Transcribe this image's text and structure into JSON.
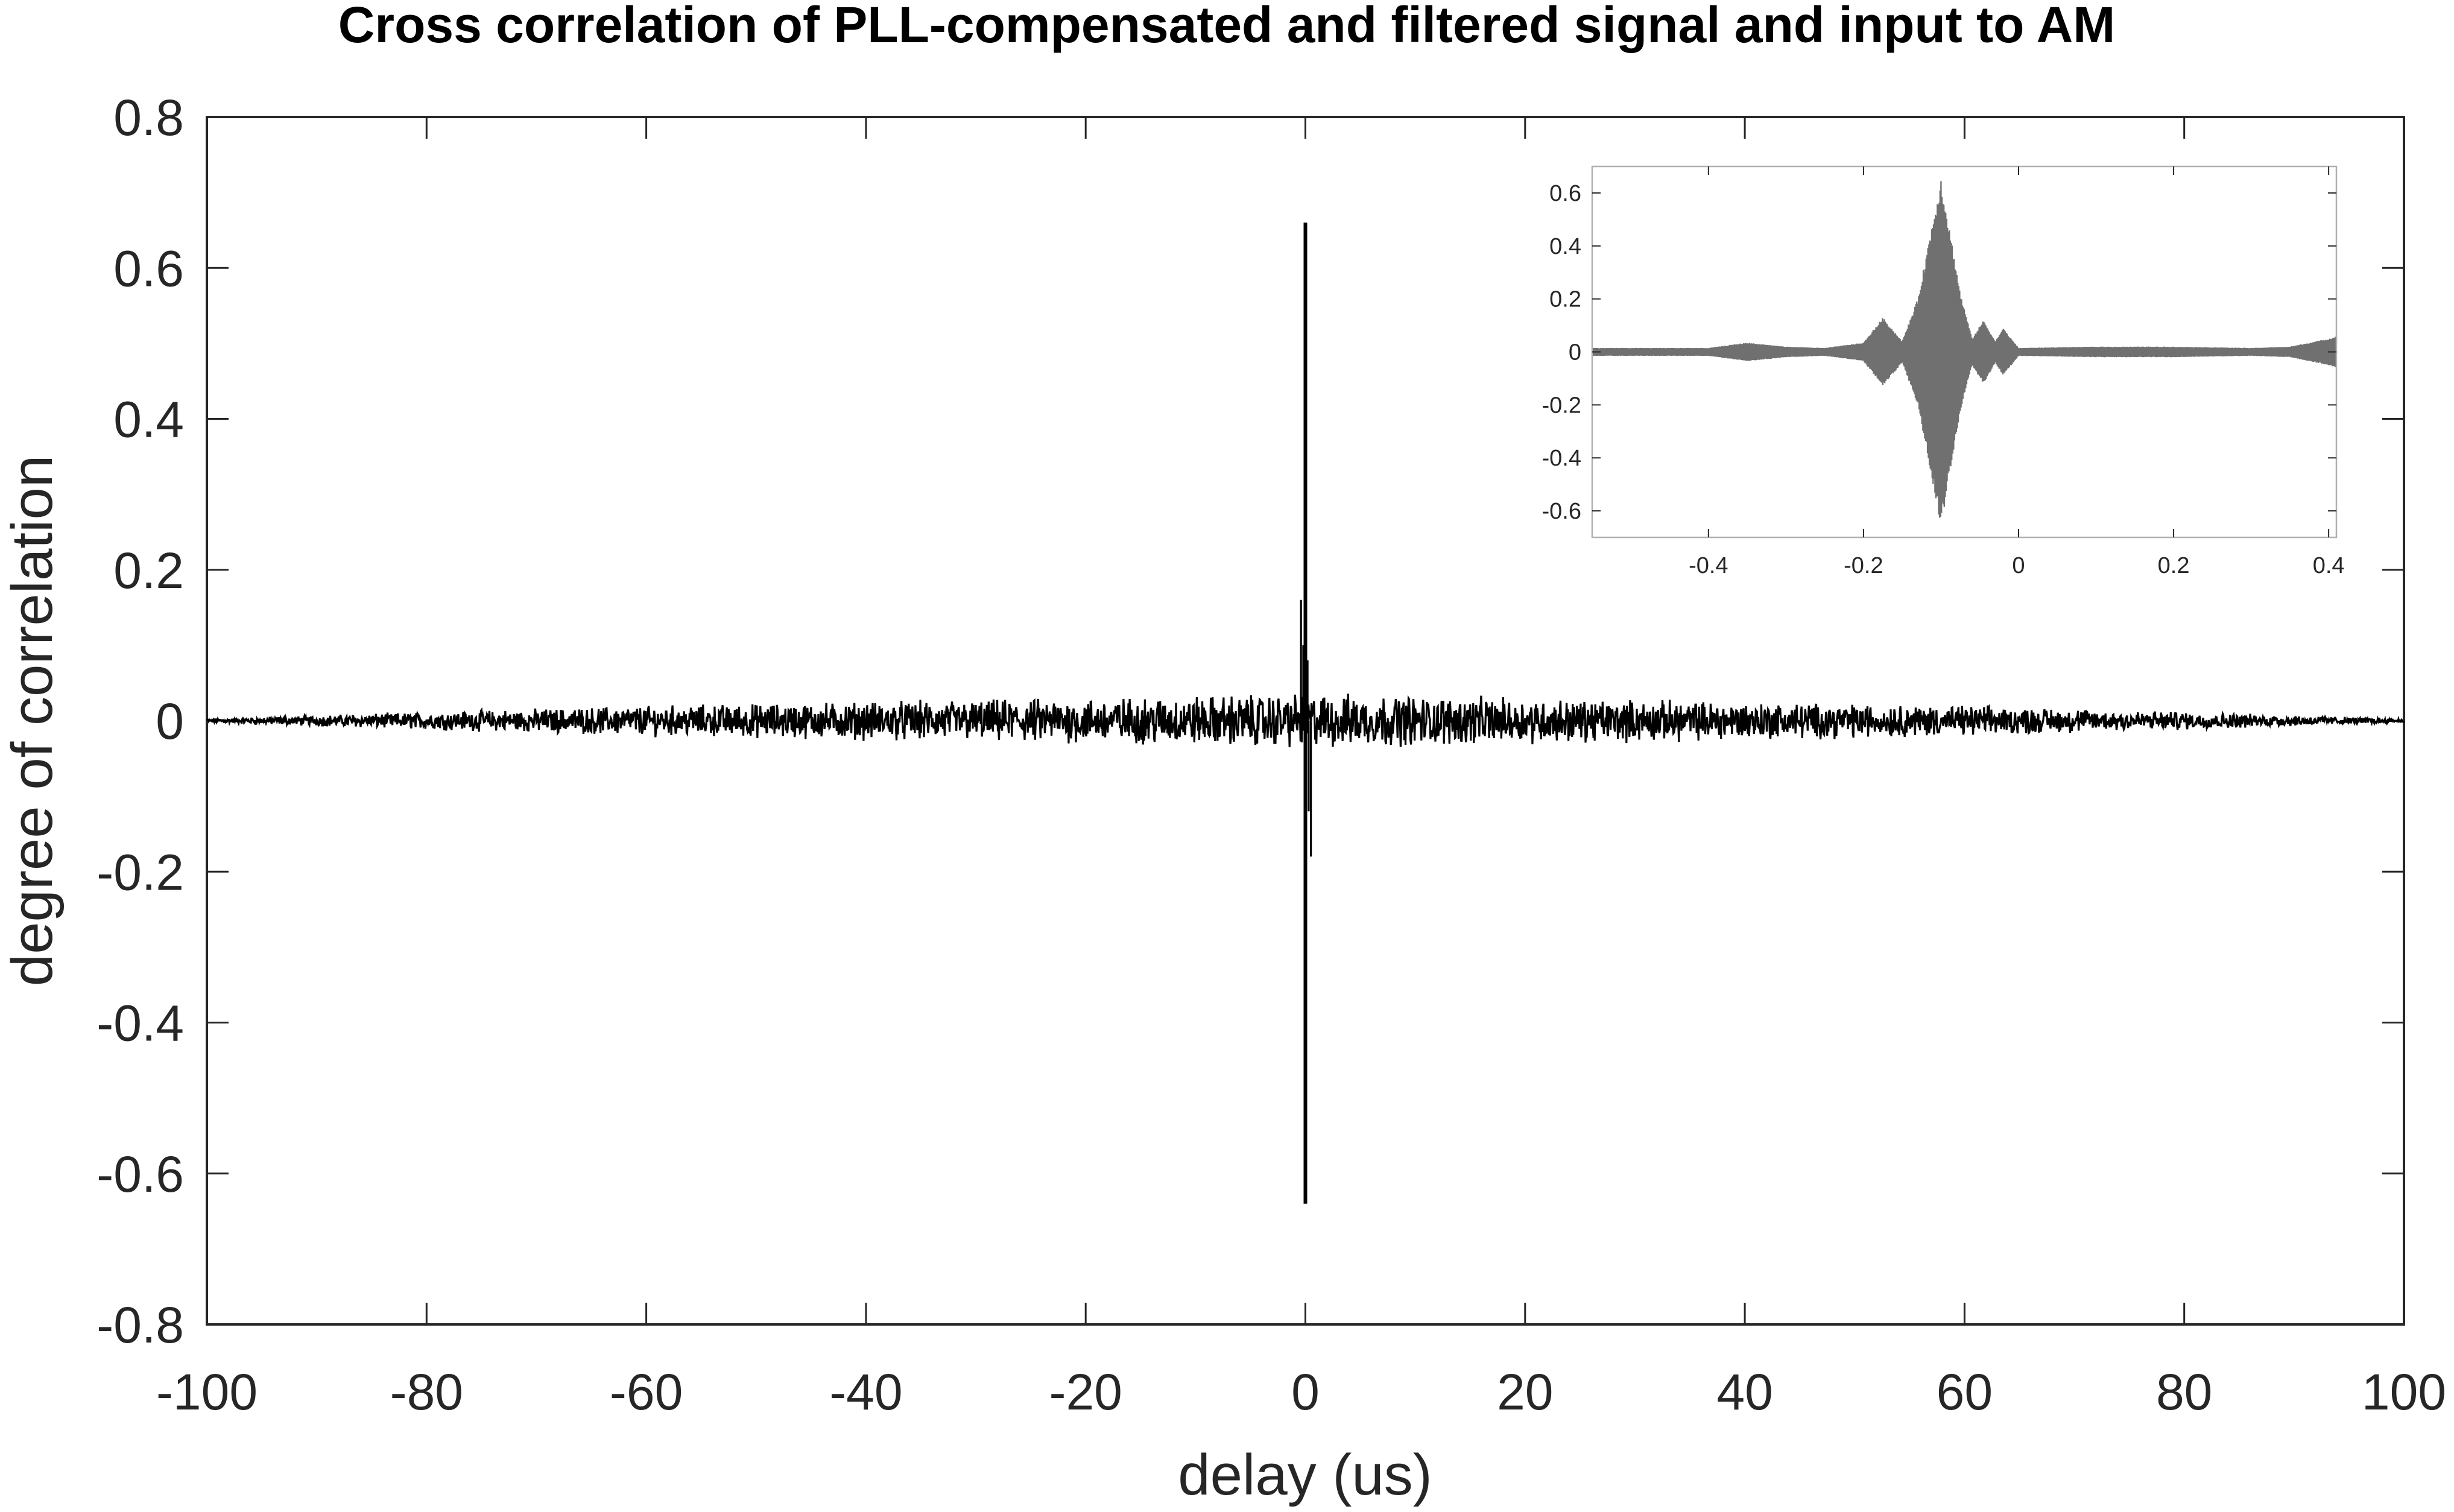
{
  "chart_data": [
    {
      "type": "line",
      "title": "Cross correlation of PLL-compensated and filtered signal and input to AM",
      "xlabel": "delay (us)",
      "ylabel": "degree of correlation",
      "xlim": [
        -100,
        100
      ],
      "ylim": [
        -0.8,
        0.8
      ],
      "xticks": [
        -100,
        -80,
        -60,
        -40,
        -20,
        0,
        20,
        40,
        60,
        80,
        100
      ],
      "yticks": [
        -0.8,
        -0.6,
        -0.4,
        -0.2,
        0,
        0.2,
        0.4,
        0.6,
        0.8
      ],
      "xtick_labels": [
        "-100",
        "-80",
        "-60",
        "-40",
        "-20",
        "0",
        "20",
        "40",
        "60",
        "80",
        "100"
      ],
      "ytick_labels": [
        "-0.8",
        "-0.6",
        "-0.4",
        "-0.2",
        "0",
        "0.2",
        "0.4",
        "0.6",
        "0.8"
      ],
      "grid": false,
      "color": "#000000",
      "series": [
        {
          "peak": {
            "x": 0,
            "max": 0.66,
            "min": -0.64
          },
          "noise_envelope": {
            "x": [
              -100,
              -80,
              -60,
              -40,
              -20,
              0,
              20,
              40,
              60,
              80,
              100
            ],
            "amplitude": [
              0.003,
              0.013,
              0.022,
              0.028,
              0.033,
              0.04,
              0.033,
              0.028,
              0.022,
              0.013,
              0.003
            ]
          }
        }
      ]
    },
    {
      "type": "line",
      "role": "inset",
      "xlim": [
        -0.55,
        0.41
      ],
      "ylim": [
        -0.7,
        0.7
      ],
      "xticks": [
        -0.4,
        -0.2,
        0,
        0.2,
        0.4
      ],
      "yticks": [
        -0.6,
        -0.4,
        -0.2,
        0,
        0.2,
        0.4,
        0.6
      ],
      "xtick_labels": [
        "-0.4",
        "-0.2",
        "0",
        "0.2",
        "0.4"
      ],
      "ytick_labels": [
        "-0.6",
        "-0.4",
        "-0.2",
        "0",
        "0.2",
        "0.4",
        "0.6"
      ],
      "color": "#707070",
      "series": [
        {
          "envelope": {
            "x": [
              -0.55,
              -0.4,
              -0.35,
              -0.3,
              -0.25,
              -0.2,
              -0.175,
              -0.15,
              -0.13,
              -0.1,
              -0.075,
              -0.06,
              -0.045,
              -0.03,
              -0.02,
              0,
              0.1,
              0.2,
              0.3,
              0.35,
              0.4,
              0.41
            ],
            "amplitude": [
              0.015,
              0.015,
              0.035,
              0.02,
              0.015,
              0.035,
              0.13,
              0.04,
              0.2,
              0.66,
              0.22,
              0.05,
              0.12,
              0.04,
              0.09,
              0.015,
              0.02,
              0.02,
              0.015,
              0.02,
              0.05,
              0.06
            ]
          }
        }
      ]
    }
  ]
}
